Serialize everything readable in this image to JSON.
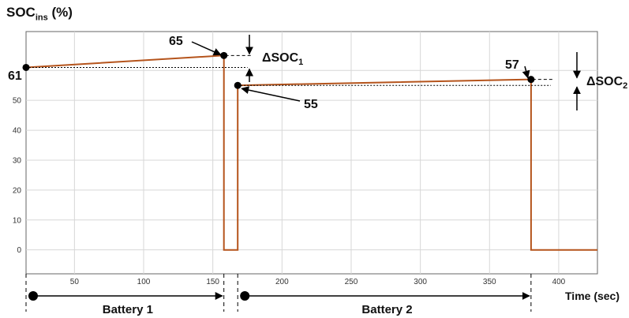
{
  "chart_data": {
    "type": "line",
    "ylabel_main": "SOC",
    "ylabel_sub": "ins",
    "ylabel_unit": "(%)",
    "xlabel": "Time (sec)",
    "xlim": [
      15,
      428
    ],
    "ylim": [
      -8,
      73
    ],
    "x_ticks": [
      50,
      100,
      150,
      200,
      250,
      300,
      350,
      400
    ],
    "y_ticks": [
      0,
      10,
      20,
      30,
      40,
      50
    ],
    "grid": true,
    "series": [
      {
        "color": "#b5541c",
        "points": [
          [
            15,
            61
          ],
          [
            158,
            65
          ],
          [
            158,
            0
          ],
          [
            168,
            0
          ],
          [
            168,
            55
          ],
          [
            380,
            57
          ],
          [
            380,
            0
          ],
          [
            428,
            0
          ]
        ]
      }
    ],
    "annotations": [
      {
        "label": "61",
        "x": 15,
        "y": 61
      },
      {
        "label": "65",
        "x": 158,
        "y": 65
      },
      {
        "label": "55",
        "x": 168,
        "y": 55
      },
      {
        "label": "57",
        "x": 380,
        "y": 57
      }
    ],
    "delta_labels": [
      {
        "main": "ΔSOC",
        "sub": "1"
      },
      {
        "main": "ΔSOC",
        "sub": "2"
      }
    ],
    "segments": [
      {
        "label": "Battery 1",
        "from": 15,
        "to": 158
      },
      {
        "label": "Battery 2",
        "from": 168,
        "to": 380
      }
    ],
    "colors": {
      "line": "#b5541c",
      "grid": "#d7d7d7",
      "axis": "#000000"
    }
  }
}
